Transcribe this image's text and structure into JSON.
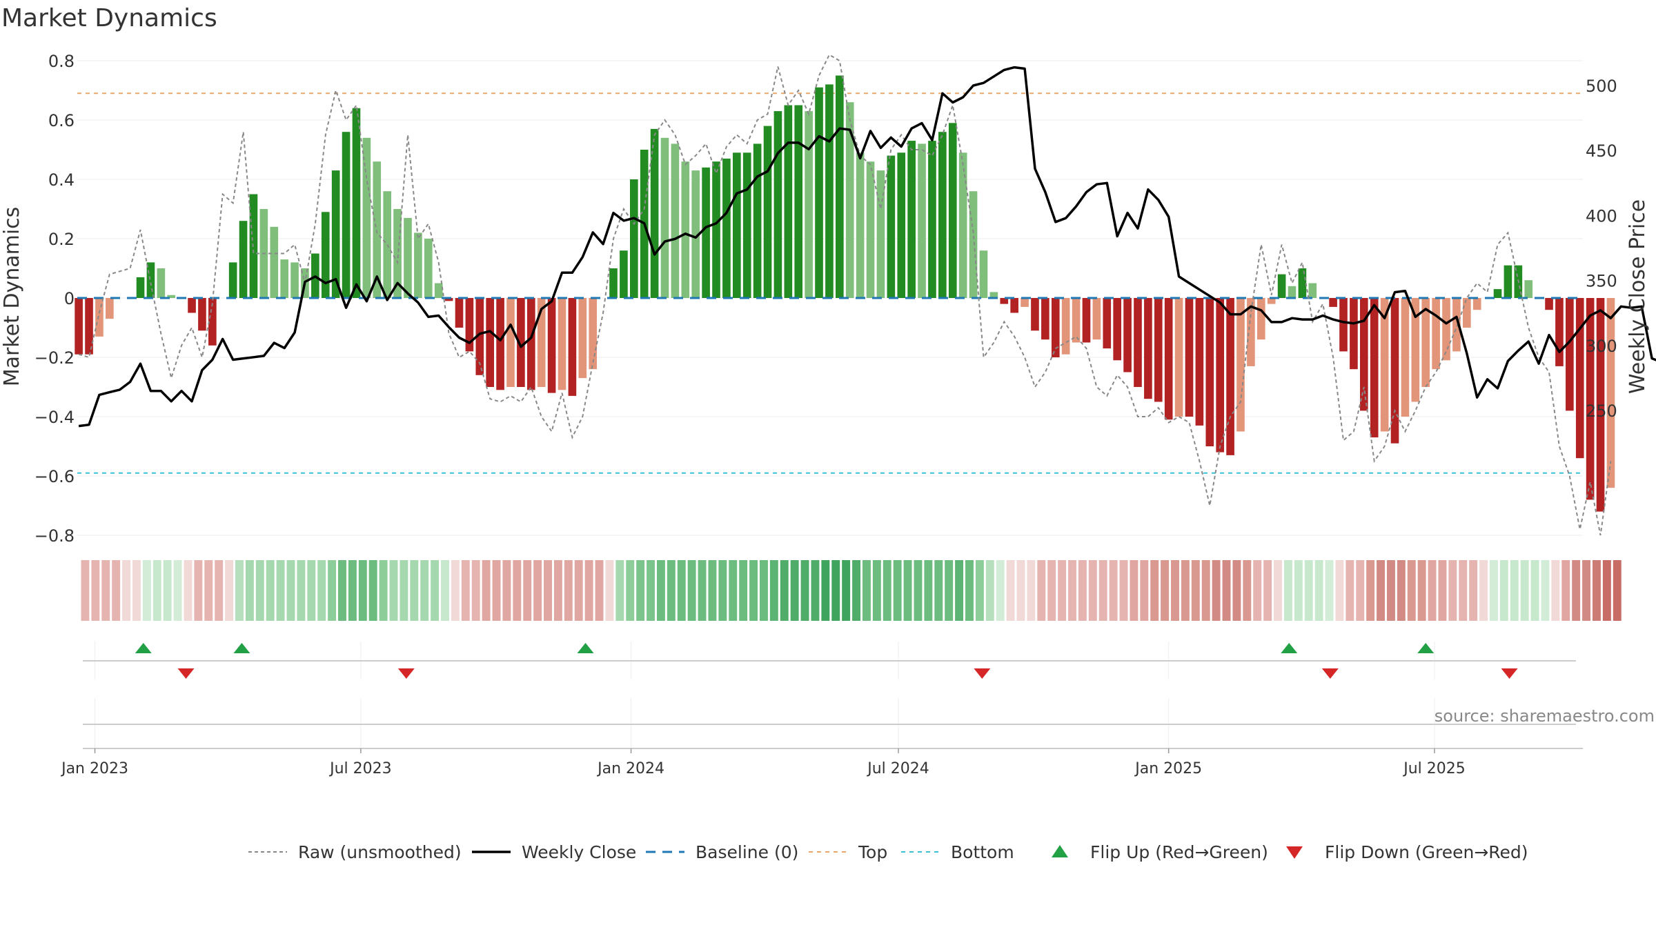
{
  "chart_data": {
    "type": "bar",
    "title": "Market Dynamics",
    "ylabel_left": "Market Dynamics",
    "ylabel_right": "Weekly Close Price",
    "ylim_left": [
      -0.8,
      0.8
    ],
    "ylim_right": [
      220,
      515
    ],
    "yticks_left": [
      0.8,
      0.6,
      0.4,
      0.2,
      0,
      -0.2,
      -0.4,
      -0.6,
      -0.8
    ],
    "yticks_left_labels": [
      "0.8",
      "0.6",
      "0.4",
      "0.2",
      "0",
      "−0.2",
      "−0.4",
      "−0.6",
      "−0.8"
    ],
    "yticks_right": [
      500,
      450,
      400,
      350,
      300,
      250
    ],
    "yticks_right_labels": [
      "500",
      "450",
      "400",
      "350",
      "300",
      "250"
    ],
    "x_start_date": "2022-12-20",
    "x_end_date": "2025-10-10",
    "xticks": [
      {
        "date": "2023-01-01",
        "label": "Jan 2023"
      },
      {
        "date": "2023-07-01",
        "label": "Jul 2023"
      },
      {
        "date": "2024-01-01",
        "label": "Jan 2024"
      },
      {
        "date": "2024-07-01",
        "label": "Jul 2024"
      },
      {
        "date": "2025-01-01",
        "label": "Jan 2025"
      },
      {
        "date": "2025-07-01",
        "label": "Jul 2025"
      }
    ],
    "week_start": "2022-12-21",
    "top_line": 0.69,
    "bottom_line": -0.59,
    "baseline": 0,
    "market_dynamics": [
      -0.19,
      -0.19,
      -0.13,
      -0.07,
      0,
      0,
      0.07,
      0.12,
      0.1,
      0.01,
      0,
      -0.05,
      -0.11,
      -0.16,
      0,
      0.12,
      0.26,
      0.35,
      0.3,
      0.24,
      0.13,
      0.12,
      0.1,
      0.15,
      0.29,
      0.43,
      0.56,
      0.64,
      0.54,
      0.46,
      0.36,
      0.3,
      0.27,
      0.22,
      0.2,
      0.05,
      -0.01,
      -0.1,
      -0.18,
      -0.26,
      -0.3,
      -0.31,
      -0.3,
      -0.3,
      -0.31,
      -0.3,
      -0.32,
      -0.31,
      -0.33,
      -0.27,
      -0.24,
      0,
      0.1,
      0.16,
      0.4,
      0.5,
      0.57,
      0.54,
      0.52,
      0.46,
      0.43,
      0.44,
      0.46,
      0.47,
      0.49,
      0.49,
      0.52,
      0.58,
      0.63,
      0.65,
      0.65,
      0.63,
      0.71,
      0.72,
      0.75,
      0.66,
      0.49,
      0.46,
      0.43,
      0.48,
      0.49,
      0.53,
      0.52,
      0.53,
      0.56,
      0.59,
      0.49,
      0.36,
      0.16,
      0.02,
      -0.02,
      -0.05,
      -0.03,
      -0.11,
      -0.14,
      -0.2,
      -0.19,
      -0.15,
      -0.15,
      -0.14,
      -0.17,
      -0.21,
      -0.25,
      -0.3,
      -0.34,
      -0.35,
      -0.41,
      -0.4,
      -0.4,
      -0.43,
      -0.5,
      -0.52,
      -0.53,
      -0.45,
      -0.23,
      -0.14,
      -0.02,
      0.08,
      0.04,
      0.1,
      0.05,
      0,
      -0.03,
      -0.18,
      -0.24,
      -0.38,
      -0.47,
      -0.45,
      -0.49,
      -0.4,
      -0.35,
      -0.3,
      -0.24,
      -0.21,
      -0.18,
      -0.1,
      -0.04,
      0,
      0.03,
      0.11,
      0.11,
      0.06,
      0,
      -0.04,
      -0.23,
      -0.38,
      -0.54,
      -0.68,
      -0.72,
      -0.64
    ],
    "raw_unsmoothed": [
      -0.19,
      -0.2,
      -0.05,
      0.08,
      0.09,
      0.1,
      0.23,
      0.05,
      -0.12,
      -0.27,
      -0.16,
      -0.1,
      -0.2,
      -0.02,
      0.35,
      0.32,
      0.56,
      0.15,
      0.15,
      0.15,
      0.15,
      0.18,
      0.05,
      0.25,
      0.55,
      0.7,
      0.6,
      0.65,
      0.4,
      0.22,
      0.18,
      0.12,
      0.55,
      0.2,
      0.25,
      0.12,
      -0.12,
      -0.2,
      -0.18,
      -0.22,
      -0.34,
      -0.35,
      -0.33,
      -0.35,
      -0.3,
      -0.4,
      -0.45,
      -0.32,
      -0.47,
      -0.4,
      -0.22,
      -0.05,
      0.2,
      0.3,
      0.25,
      0.3,
      0.55,
      0.6,
      0.55,
      0.45,
      0.48,
      0.52,
      0.42,
      0.51,
      0.55,
      0.52,
      0.6,
      0.62,
      0.78,
      0.65,
      0.7,
      0.62,
      0.75,
      0.82,
      0.8,
      0.6,
      0.48,
      0.45,
      0.3,
      0.5,
      0.55,
      0.5,
      0.5,
      0.48,
      0.55,
      0.65,
      0.45,
      0.22,
      -0.2,
      -0.15,
      -0.08,
      -0.13,
      -0.2,
      -0.3,
      -0.25,
      -0.17,
      -0.15,
      -0.13,
      -0.17,
      -0.3,
      -0.33,
      -0.26,
      -0.3,
      -0.4,
      -0.4,
      -0.37,
      -0.42,
      -0.4,
      -0.42,
      -0.55,
      -0.7,
      -0.5,
      -0.4,
      -0.35,
      -0.05,
      0.18,
      0.01,
      0.18,
      0.05,
      0.12,
      -0.08,
      -0.02,
      -0.2,
      -0.48,
      -0.45,
      -0.3,
      -0.55,
      -0.5,
      -0.38,
      -0.45,
      -0.38,
      -0.3,
      -0.25,
      -0.18,
      -0.1,
      0.0,
      0.05,
      0.02,
      0.18,
      0.22,
      0.06,
      -0.1,
      -0.2,
      -0.25,
      -0.5,
      -0.6,
      -0.78,
      -0.62,
      -0.8,
      -0.55
    ],
    "weekly_close": [
      238,
      239,
      262,
      264,
      266,
      272,
      286,
      265,
      265,
      257,
      265,
      257,
      281,
      289,
      305,
      289,
      290,
      291,
      292,
      302,
      298,
      310,
      349,
      353,
      348,
      351,
      329,
      347,
      334,
      353,
      335,
      348,
      340,
      333,
      322,
      323,
      314,
      306,
      302,
      309,
      311,
      304,
      316,
      299,
      306,
      328,
      334,
      356,
      356,
      368,
      387,
      378,
      402,
      396,
      398,
      394,
      370,
      380,
      382,
      386,
      383,
      391,
      394,
      402,
      417,
      420,
      430,
      434,
      448,
      456,
      456,
      451,
      461,
      457,
      467,
      466,
      444,
      465,
      452,
      460,
      453,
      467,
      471,
      458,
      494,
      487,
      491,
      500,
      502,
      507,
      512,
      514,
      513,
      436,
      418,
      395,
      398,
      407,
      418,
      424,
      425,
      384,
      402,
      390,
      420,
      412,
      399,
      353,
      348,
      343,
      338,
      333,
      324,
      324,
      330,
      327,
      318,
      318,
      321,
      320,
      320,
      323,
      320,
      318,
      317,
      319,
      331,
      321,
      341,
      342,
      322,
      328,
      323,
      317,
      322,
      294,
      260,
      274,
      267,
      288,
      296,
      303,
      286,
      308,
      295,
      303,
      313,
      323,
      327,
      321,
      330,
      329,
      330,
      290,
      287,
      286,
      284,
      277,
      271,
      265,
      277,
      291,
      309
    ]
  },
  "strip": {
    "colors": [
      "#e6b4b0",
      "#e6b4b0",
      "#e6b4b0",
      "#e6b4b0",
      "#f0d9d7",
      "#f0d9d7",
      "#d3ecd7",
      "#c7e8cc",
      "#c7e8cc",
      "#d3ecd7",
      "#f0d9d7",
      "#e6b4b0",
      "#e6b4b0",
      "#e6b4b0",
      "#f0d9d7",
      "#b6e0bd",
      "#a6d8af",
      "#a6d8af",
      "#a6d8af",
      "#a6d8af",
      "#a6d8af",
      "#a6d8af",
      "#a6d8af",
      "#a6d8af",
      "#8ccd99",
      "#6cbc80",
      "#6cbc80",
      "#6cbc80",
      "#6cbc80",
      "#8ccd99",
      "#a6d8af",
      "#a6d8af",
      "#a6d8af",
      "#a6d8af",
      "#a6d8af",
      "#c7e8cc",
      "#f0d9d7",
      "#e6b4b0",
      "#e6b4b0",
      "#e0a6a1",
      "#e0a6a1",
      "#e0a6a1",
      "#e0a6a1",
      "#e0a6a1",
      "#e0a6a1",
      "#e0a6a1",
      "#e0a6a1",
      "#e0a6a1",
      "#e0a6a1",
      "#e0a6a1",
      "#e0a6a1",
      "#f0d9d7",
      "#a6d8af",
      "#8ccd99",
      "#7bc48c",
      "#7bc48c",
      "#6cbc80",
      "#6cbc80",
      "#6cbc80",
      "#6cbc80",
      "#6cbc80",
      "#6cbc80",
      "#6cbc80",
      "#6cbc80",
      "#6cbc80",
      "#6cbc80",
      "#6cbc80",
      "#5cb474",
      "#4fac69",
      "#4fac69",
      "#4fac69",
      "#4fac69",
      "#3fa45d",
      "#3fa45d",
      "#3fa45d",
      "#4fac69",
      "#6cbc80",
      "#6cbc80",
      "#6cbc80",
      "#6cbc80",
      "#6cbc80",
      "#6cbc80",
      "#6cbc80",
      "#6cbc80",
      "#6cbc80",
      "#5cb474",
      "#6cbc80",
      "#8ccd99",
      "#b6e0bd",
      "#d3ecd7",
      "#f0d9d7",
      "#f0d9d7",
      "#f0d9d7",
      "#e6b4b0",
      "#e6b4b0",
      "#e6b4b0",
      "#e6b4b0",
      "#e6b4b0",
      "#e6b4b0",
      "#e6b4b0",
      "#e6b4b0",
      "#e6b4b0",
      "#e0a6a1",
      "#e0a6a1",
      "#d99890",
      "#d99890",
      "#d99890",
      "#d99890",
      "#d99890",
      "#d99890",
      "#d28b84",
      "#d28b84",
      "#d28b84",
      "#d99890",
      "#e6b4b0",
      "#e6b4b0",
      "#f0d9d7",
      "#c7e8cc",
      "#c7e8cc",
      "#c7e8cc",
      "#c7e8cc",
      "#d3ecd7",
      "#f0d9d7",
      "#e6b4b0",
      "#e6b4b0",
      "#d99890",
      "#d28b84",
      "#d28b84",
      "#d28b84",
      "#d99890",
      "#d99890",
      "#e0a6a1",
      "#e0a6a1",
      "#e6b4b0",
      "#e6b4b0",
      "#e6b4b0",
      "#f0d9d7",
      "#d3ecd7",
      "#c7e8cc",
      "#c7e8cc",
      "#c7e8cc",
      "#c7e8cc",
      "#d3ecd7",
      "#f0d9d7",
      "#e0a6a1",
      "#d28b84",
      "#d28b84",
      "#cc7c74",
      "#c76d65",
      "#c76d65"
    ]
  },
  "flips": {
    "up_dates": [
      "2023-02-03",
      "2023-04-11",
      "2023-12-01",
      "2025-03-24",
      "2025-06-25"
    ],
    "down_dates": [
      "2023-03-04",
      "2023-08-01",
      "2024-08-27",
      "2025-04-21",
      "2025-08-21"
    ]
  },
  "source_text": "source: sharemaestro.com",
  "legend": [
    {
      "label": "Raw (unsmoothed)",
      "style": "dotted-gray"
    },
    {
      "label": "Weekly Close",
      "style": "solid-black"
    },
    {
      "label": "Baseline (0)",
      "style": "dashed-blue"
    },
    {
      "label": "Top",
      "style": "dotted-orange"
    },
    {
      "label": "Bottom",
      "style": "dotted-cyan"
    },
    {
      "label": "Flip Up (Red→Green)",
      "style": "triangle-up"
    },
    {
      "label": "Flip Down (Green→Red)",
      "style": "triangle-down"
    }
  ],
  "colors": {
    "green_strong": "#228b22",
    "green_light": "#7fbf7b",
    "red_strong": "#b22222",
    "red_light": "#e29578",
    "raw_line": "#888888",
    "close_line": "#000000",
    "baseline": "#1f77b4",
    "top_line": "#e8a76a",
    "bottom_line": "#3bbfd4",
    "flip_up": "#22a045",
    "flip_down": "#d62728"
  }
}
